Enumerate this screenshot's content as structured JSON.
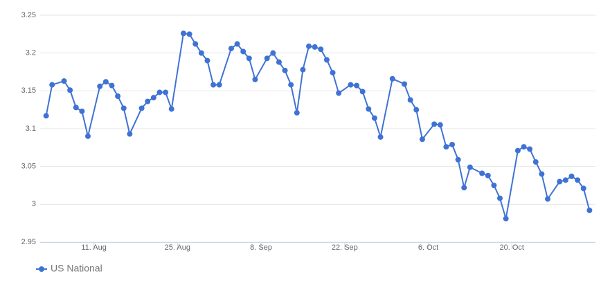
{
  "chart_data": {
    "type": "line",
    "x": [
      "08-03",
      "08-04",
      "08-06",
      "08-07",
      "08-08",
      "08-09",
      "08-10",
      "08-12",
      "08-13",
      "08-14",
      "08-15",
      "08-16",
      "08-17",
      "08-19",
      "08-20",
      "08-21",
      "08-22",
      "08-23",
      "08-24",
      "08-26",
      "08-27",
      "08-28",
      "08-29",
      "08-30",
      "08-31",
      "09-01",
      "09-03",
      "09-04",
      "09-05",
      "09-06",
      "09-07",
      "09-09",
      "09-10",
      "09-11",
      "09-12",
      "09-13",
      "09-14",
      "09-15",
      "09-16",
      "09-17",
      "09-18",
      "09-19",
      "09-20",
      "09-21",
      "09-23",
      "09-24",
      "09-25",
      "09-26",
      "09-27",
      "09-28",
      "09-30",
      "10-02",
      "10-03",
      "10-04",
      "10-05",
      "10-07",
      "10-08",
      "10-09",
      "10-10",
      "10-11",
      "10-12",
      "10-13",
      "10-15",
      "10-16",
      "10-17",
      "10-18",
      "10-19",
      "10-21",
      "10-22",
      "10-23",
      "10-24",
      "10-25",
      "10-26",
      "10-28",
      "10-29",
      "10-30",
      "10-31",
      "11-01",
      "11-02"
    ],
    "series": [
      {
        "name": "US National",
        "color": "#3f72d4",
        "values": [
          3.117,
          3.158,
          3.163,
          3.151,
          3.128,
          3.123,
          3.09,
          3.156,
          3.162,
          3.157,
          3.143,
          3.127,
          3.093,
          3.127,
          3.136,
          3.141,
          3.148,
          3.148,
          3.126,
          3.226,
          3.225,
          3.212,
          3.2,
          3.19,
          3.158,
          3.158,
          3.206,
          3.212,
          3.202,
          3.193,
          3.165,
          3.193,
          3.2,
          3.188,
          3.177,
          3.158,
          3.121,
          3.178,
          3.209,
          3.208,
          3.205,
          3.191,
          3.174,
          3.147,
          3.158,
          3.157,
          3.149,
          3.126,
          3.114,
          3.089,
          3.166,
          3.159,
          3.138,
          3.125,
          3.086,
          3.106,
          3.105,
          3.076,
          3.079,
          3.059,
          3.022,
          3.049,
          3.041,
          3.038,
          3.025,
          3.008,
          2.981,
          3.071,
          3.076,
          3.073,
          3.056,
          3.04,
          3.007,
          3.03,
          3.032,
          3.037,
          3.032,
          3.021,
          2.992
        ]
      }
    ],
    "xlim": [
      "08-02",
      "11-03"
    ],
    "xticks": [
      {
        "value": "08-11",
        "label": "11. Aug"
      },
      {
        "value": "08-25",
        "label": "25. Aug"
      },
      {
        "value": "09-08",
        "label": "8. Sep"
      },
      {
        "value": "09-22",
        "label": "22. Sep"
      },
      {
        "value": "10-06",
        "label": "6. Oct"
      },
      {
        "value": "10-20",
        "label": "20. Oct"
      }
    ],
    "ylim": [
      2.95,
      3.25
    ],
    "yticks": [
      2.95,
      3,
      3.05,
      3.1,
      3.15,
      3.2,
      3.25
    ],
    "grid": true,
    "legend": "bottom-left"
  }
}
